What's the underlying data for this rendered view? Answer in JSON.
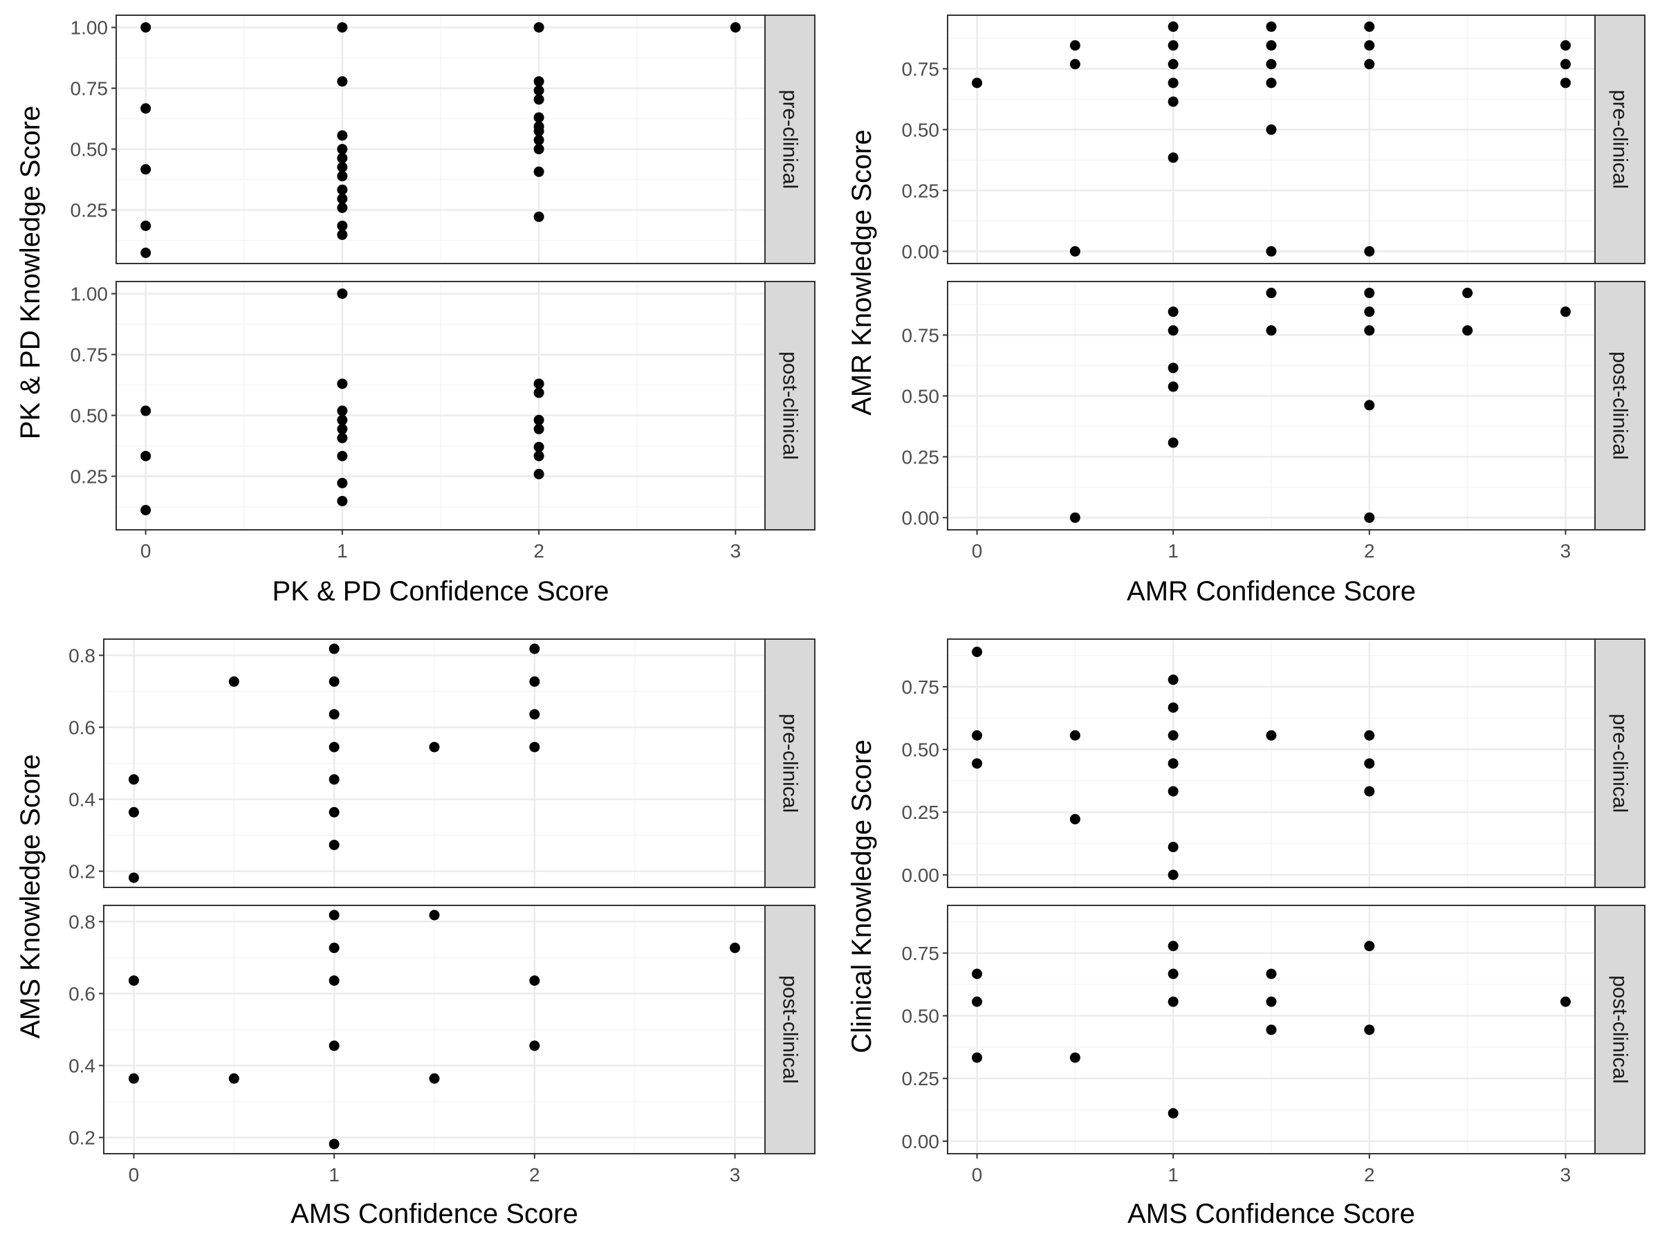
{
  "chart_data": [
    {
      "type": "scatter",
      "xlabel": "PK & PD Confidence Score",
      "ylabel": "PK & PD Knowledge Score",
      "x_ticks": [
        0,
        1,
        2,
        3
      ],
      "x_tick_labels": [
        "0",
        "1",
        "2",
        "3"
      ],
      "xlim": [
        -0.15,
        3.15
      ],
      "y_ticks": [
        0.25,
        0.5,
        0.75,
        1.0
      ],
      "y_tick_labels": [
        "0.25",
        "0.50",
        "0.75",
        "1.00"
      ],
      "ylim": [
        0.03,
        1.05
      ],
      "grid": true,
      "facets": [
        {
          "label": "pre-clinical",
          "points": [
            [
              0,
              1.0
            ],
            [
              0,
              0.667
            ],
            [
              0,
              0.417
            ],
            [
              0,
              0.185
            ],
            [
              0,
              0.074
            ],
            [
              1,
              1.0
            ],
            [
              1,
              0.778
            ],
            [
              1,
              0.556
            ],
            [
              1,
              0.5
            ],
            [
              1,
              0.463
            ],
            [
              1,
              0.426
            ],
            [
              1,
              0.389
            ],
            [
              1,
              0.333
            ],
            [
              1,
              0.296
            ],
            [
              1,
              0.259
            ],
            [
              1,
              0.185
            ],
            [
              1,
              0.148
            ],
            [
              2,
              1.0
            ],
            [
              2,
              0.778
            ],
            [
              2,
              0.741
            ],
            [
              2,
              0.704
            ],
            [
              2,
              0.63
            ],
            [
              2,
              0.593
            ],
            [
              2,
              0.574
            ],
            [
              2,
              0.537
            ],
            [
              2,
              0.5
            ],
            [
              2,
              0.407
            ],
            [
              2,
              0.222
            ],
            [
              3,
              1.0
            ]
          ]
        },
        {
          "label": "post-clinical",
          "points": [
            [
              0,
              0.519
            ],
            [
              0,
              0.333
            ],
            [
              0,
              0.111
            ],
            [
              1,
              1.0
            ],
            [
              1,
              0.63
            ],
            [
              1,
              0.519
            ],
            [
              1,
              0.481
            ],
            [
              1,
              0.444
            ],
            [
              1,
              0.407
            ],
            [
              1,
              0.333
            ],
            [
              1,
              0.222
            ],
            [
              1,
              0.148
            ],
            [
              2,
              0.63
            ],
            [
              2,
              0.593
            ],
            [
              2,
              0.481
            ],
            [
              2,
              0.444
            ],
            [
              2,
              0.37
            ],
            [
              2,
              0.333
            ],
            [
              2,
              0.259
            ]
          ]
        }
      ]
    },
    {
      "type": "scatter",
      "xlabel": "AMR Confidence Score",
      "ylabel": "AMR Knowledge Score",
      "x_ticks": [
        0,
        1,
        2,
        3
      ],
      "x_tick_labels": [
        "0",
        "1",
        "2",
        "3"
      ],
      "xlim": [
        -0.15,
        3.15
      ],
      "y_ticks": [
        0,
        0.25,
        0.5,
        0.75
      ],
      "y_tick_labels": [
        "0.00",
        "0.25",
        "0.50",
        "0.75"
      ],
      "ylim": [
        -0.05,
        0.97
      ],
      "grid": true,
      "facets": [
        {
          "label": "pre-clinical",
          "points": [
            [
              0,
              0.692
            ],
            [
              0.5,
              0.846
            ],
            [
              0.5,
              0.769
            ],
            [
              0.5,
              0.0
            ],
            [
              1,
              0.923
            ],
            [
              1,
              0.846
            ],
            [
              1,
              0.769
            ],
            [
              1,
              0.692
            ],
            [
              1,
              0.615
            ],
            [
              1,
              0.385
            ],
            [
              1.5,
              0.923
            ],
            [
              1.5,
              0.846
            ],
            [
              1.5,
              0.769
            ],
            [
              1.5,
              0.692
            ],
            [
              1.5,
              0.5
            ],
            [
              1.5,
              0.0
            ],
            [
              2,
              0.923
            ],
            [
              2,
              0.846
            ],
            [
              2,
              0.769
            ],
            [
              2,
              0.0
            ],
            [
              3,
              0.846
            ],
            [
              3,
              0.769
            ],
            [
              3,
              0.692
            ]
          ]
        },
        {
          "label": "post-clinical",
          "points": [
            [
              0.5,
              0.0
            ],
            [
              1,
              0.846
            ],
            [
              1,
              0.769
            ],
            [
              1,
              0.615
            ],
            [
              1,
              0.538
            ],
            [
              1,
              0.308
            ],
            [
              1.5,
              0.923
            ],
            [
              1.5,
              0.769
            ],
            [
              2,
              0.923
            ],
            [
              2,
              0.846
            ],
            [
              2,
              0.769
            ],
            [
              2,
              0.462
            ],
            [
              2,
              0.0
            ],
            [
              2.5,
              0.923
            ],
            [
              2.5,
              0.769
            ],
            [
              3,
              0.846
            ]
          ]
        }
      ]
    },
    {
      "type": "scatter",
      "xlabel": "AMS Confidence Score",
      "ylabel": "AMS Knowledge Score",
      "x_ticks": [
        0,
        1,
        2,
        3
      ],
      "x_tick_labels": [
        "0",
        "1",
        "2",
        "3"
      ],
      "xlim": [
        -0.15,
        3.15
      ],
      "y_ticks": [
        0.2,
        0.4,
        0.6,
        0.8
      ],
      "y_tick_labels": [
        "0.2",
        "0.4",
        "0.6",
        "0.8"
      ],
      "ylim": [
        0.155,
        0.845
      ],
      "grid": true,
      "facets": [
        {
          "label": "pre-clinical",
          "points": [
            [
              0,
              0.455
            ],
            [
              0,
              0.364
            ],
            [
              0,
              0.182
            ],
            [
              0.5,
              0.727
            ],
            [
              1,
              0.818
            ],
            [
              1,
              0.727
            ],
            [
              1,
              0.636
            ],
            [
              1,
              0.545
            ],
            [
              1,
              0.455
            ],
            [
              1,
              0.364
            ],
            [
              1,
              0.273
            ],
            [
              1.5,
              0.545
            ],
            [
              2,
              0.818
            ],
            [
              2,
              0.727
            ],
            [
              2,
              0.636
            ],
            [
              2,
              0.545
            ]
          ]
        },
        {
          "label": "post-clinical",
          "points": [
            [
              0,
              0.636
            ],
            [
              0,
              0.364
            ],
            [
              0.5,
              0.364
            ],
            [
              1,
              0.818
            ],
            [
              1,
              0.727
            ],
            [
              1,
              0.636
            ],
            [
              1,
              0.455
            ],
            [
              1,
              0.182
            ],
            [
              1.5,
              0.818
            ],
            [
              1.5,
              0.364
            ],
            [
              2,
              0.636
            ],
            [
              2,
              0.455
            ],
            [
              3,
              0.727
            ]
          ]
        }
      ]
    },
    {
      "type": "scatter",
      "xlabel": "AMS Confidence Score",
      "ylabel": "Clinical Knowledge Score",
      "x_ticks": [
        0,
        1,
        2,
        3
      ],
      "x_tick_labels": [
        "0",
        "1",
        "2",
        "3"
      ],
      "xlim": [
        -0.15,
        3.15
      ],
      "y_ticks": [
        0,
        0.25,
        0.5,
        0.75
      ],
      "y_tick_labels": [
        "0.00",
        "0.25",
        "0.50",
        "0.75"
      ],
      "ylim": [
        -0.05,
        0.94
      ],
      "grid": true,
      "facets": [
        {
          "label": "pre-clinical",
          "points": [
            [
              0,
              0.889
            ],
            [
              0,
              0.556
            ],
            [
              0,
              0.444
            ],
            [
              0.5,
              0.556
            ],
            [
              0.5,
              0.222
            ],
            [
              1,
              0.778
            ],
            [
              1,
              0.667
            ],
            [
              1,
              0.556
            ],
            [
              1,
              0.444
            ],
            [
              1,
              0.333
            ],
            [
              1,
              0.111
            ],
            [
              1,
              0.0
            ],
            [
              1.5,
              0.556
            ],
            [
              2,
              0.556
            ],
            [
              2,
              0.444
            ],
            [
              2,
              0.333
            ]
          ]
        },
        {
          "label": "post-clinical",
          "points": [
            [
              0,
              0.667
            ],
            [
              0,
              0.556
            ],
            [
              0,
              0.333
            ],
            [
              0.5,
              0.333
            ],
            [
              1,
              0.778
            ],
            [
              1,
              0.667
            ],
            [
              1,
              0.556
            ],
            [
              1,
              0.111
            ],
            [
              1.5,
              0.667
            ],
            [
              1.5,
              0.556
            ],
            [
              1.5,
              0.444
            ],
            [
              2,
              0.778
            ],
            [
              2,
              0.444
            ],
            [
              3,
              0.556
            ]
          ]
        }
      ]
    }
  ],
  "colors": {
    "point": "#000000",
    "panel_border": "#333333",
    "grid_major": "#ebebeb",
    "grid_minor": "#f5f5f5",
    "strip_fill": "#d9d9d9",
    "tick_text": "#4d4d4d"
  }
}
